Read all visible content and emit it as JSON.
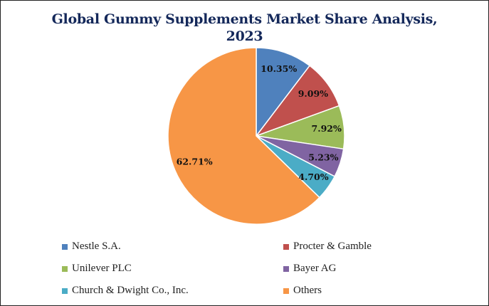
{
  "chart_data": {
    "type": "pie",
    "title": "Global Gummy Supplements Market Share Analysis, 2023",
    "title_lines": [
      "Global Gummy Supplements Market Share Analysis,",
      "2023"
    ],
    "legend_position": "bottom",
    "slices": [
      {
        "name": "Nestle S.A.",
        "value": 10.35,
        "label": "10.35%",
        "color": "#4f81bd"
      },
      {
        "name": "Procter & Gamble",
        "value": 9.09,
        "label": "9.09%",
        "color": "#c0504d"
      },
      {
        "name": "Unilever PLC",
        "value": 7.92,
        "label": "7.92%",
        "color": "#9bbb59"
      },
      {
        "name": "Bayer AG",
        "value": 5.23,
        "label": "5.23%",
        "color": "#8064a2"
      },
      {
        "name": "Church & Dwight Co., Inc.",
        "value": 4.7,
        "label": "4.70%",
        "color": "#4bacc6"
      },
      {
        "name": "Others",
        "value": 62.71,
        "label": "62.71%",
        "color": "#f79646"
      }
    ]
  }
}
